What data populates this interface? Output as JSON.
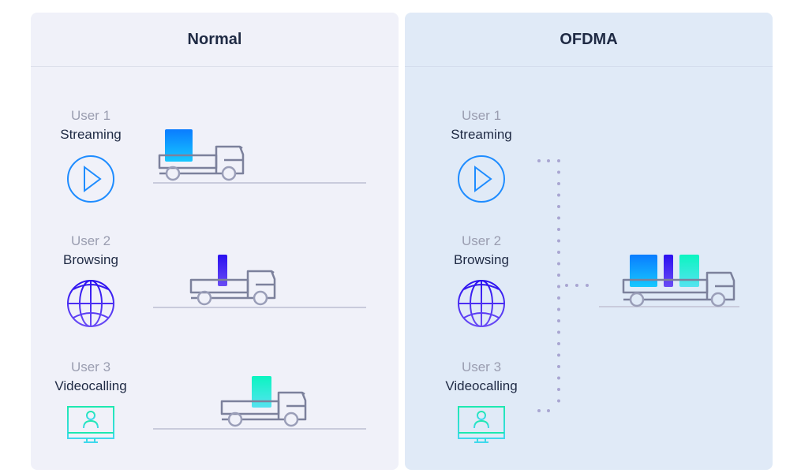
{
  "panels": [
    {
      "title": "Normal"
    },
    {
      "title": "OFDMA"
    }
  ],
  "users": [
    {
      "user": "User 1",
      "activity": "Streaming",
      "icon": "play-icon",
      "color": "#1e8cff"
    },
    {
      "user": "User 2",
      "activity": "Browsing",
      "icon": "globe-icon",
      "color": "#3a1cf0"
    },
    {
      "user": "User 3",
      "activity": "Videocalling",
      "icon": "monitor-user-icon",
      "color": "#1de9c0"
    }
  ],
  "colors": {
    "truck": "#7c819c",
    "ground": "#c9cbdc",
    "dots": "#a9a6d2"
  }
}
